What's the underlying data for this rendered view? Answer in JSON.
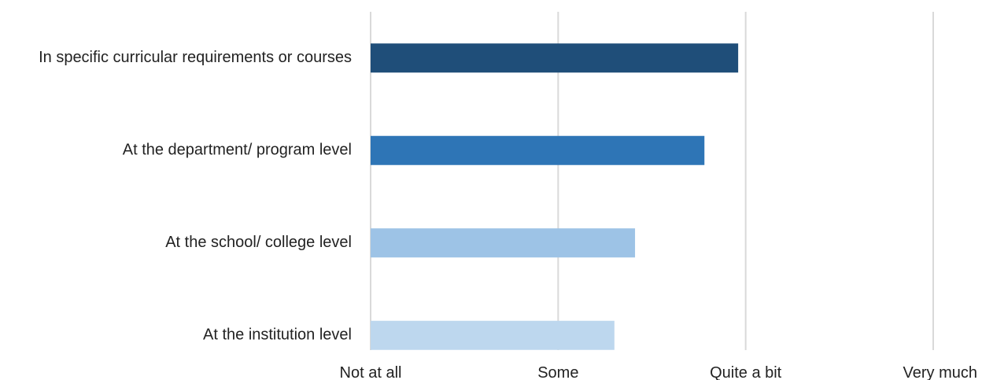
{
  "chart_data": {
    "type": "bar",
    "orientation": "horizontal",
    "categories": [
      "In specific curricular requirements or courses",
      "At the department/ program level",
      "At the school/ college level",
      "At the institution level"
    ],
    "values": [
      2.96,
      2.78,
      2.41,
      2.3
    ],
    "colors": [
      "#1f4e79",
      "#2e75b6",
      "#9dc3e6",
      "#bdd7ee"
    ],
    "xlim": [
      1,
      4
    ],
    "xticks": [
      1,
      2,
      3,
      4
    ],
    "xtick_labels": [
      "Not at all",
      "Some",
      "Quite a bit",
      "Very much"
    ],
    "grid": "vertical",
    "gridline_color": "#d9d9d9",
    "legend": "none"
  }
}
